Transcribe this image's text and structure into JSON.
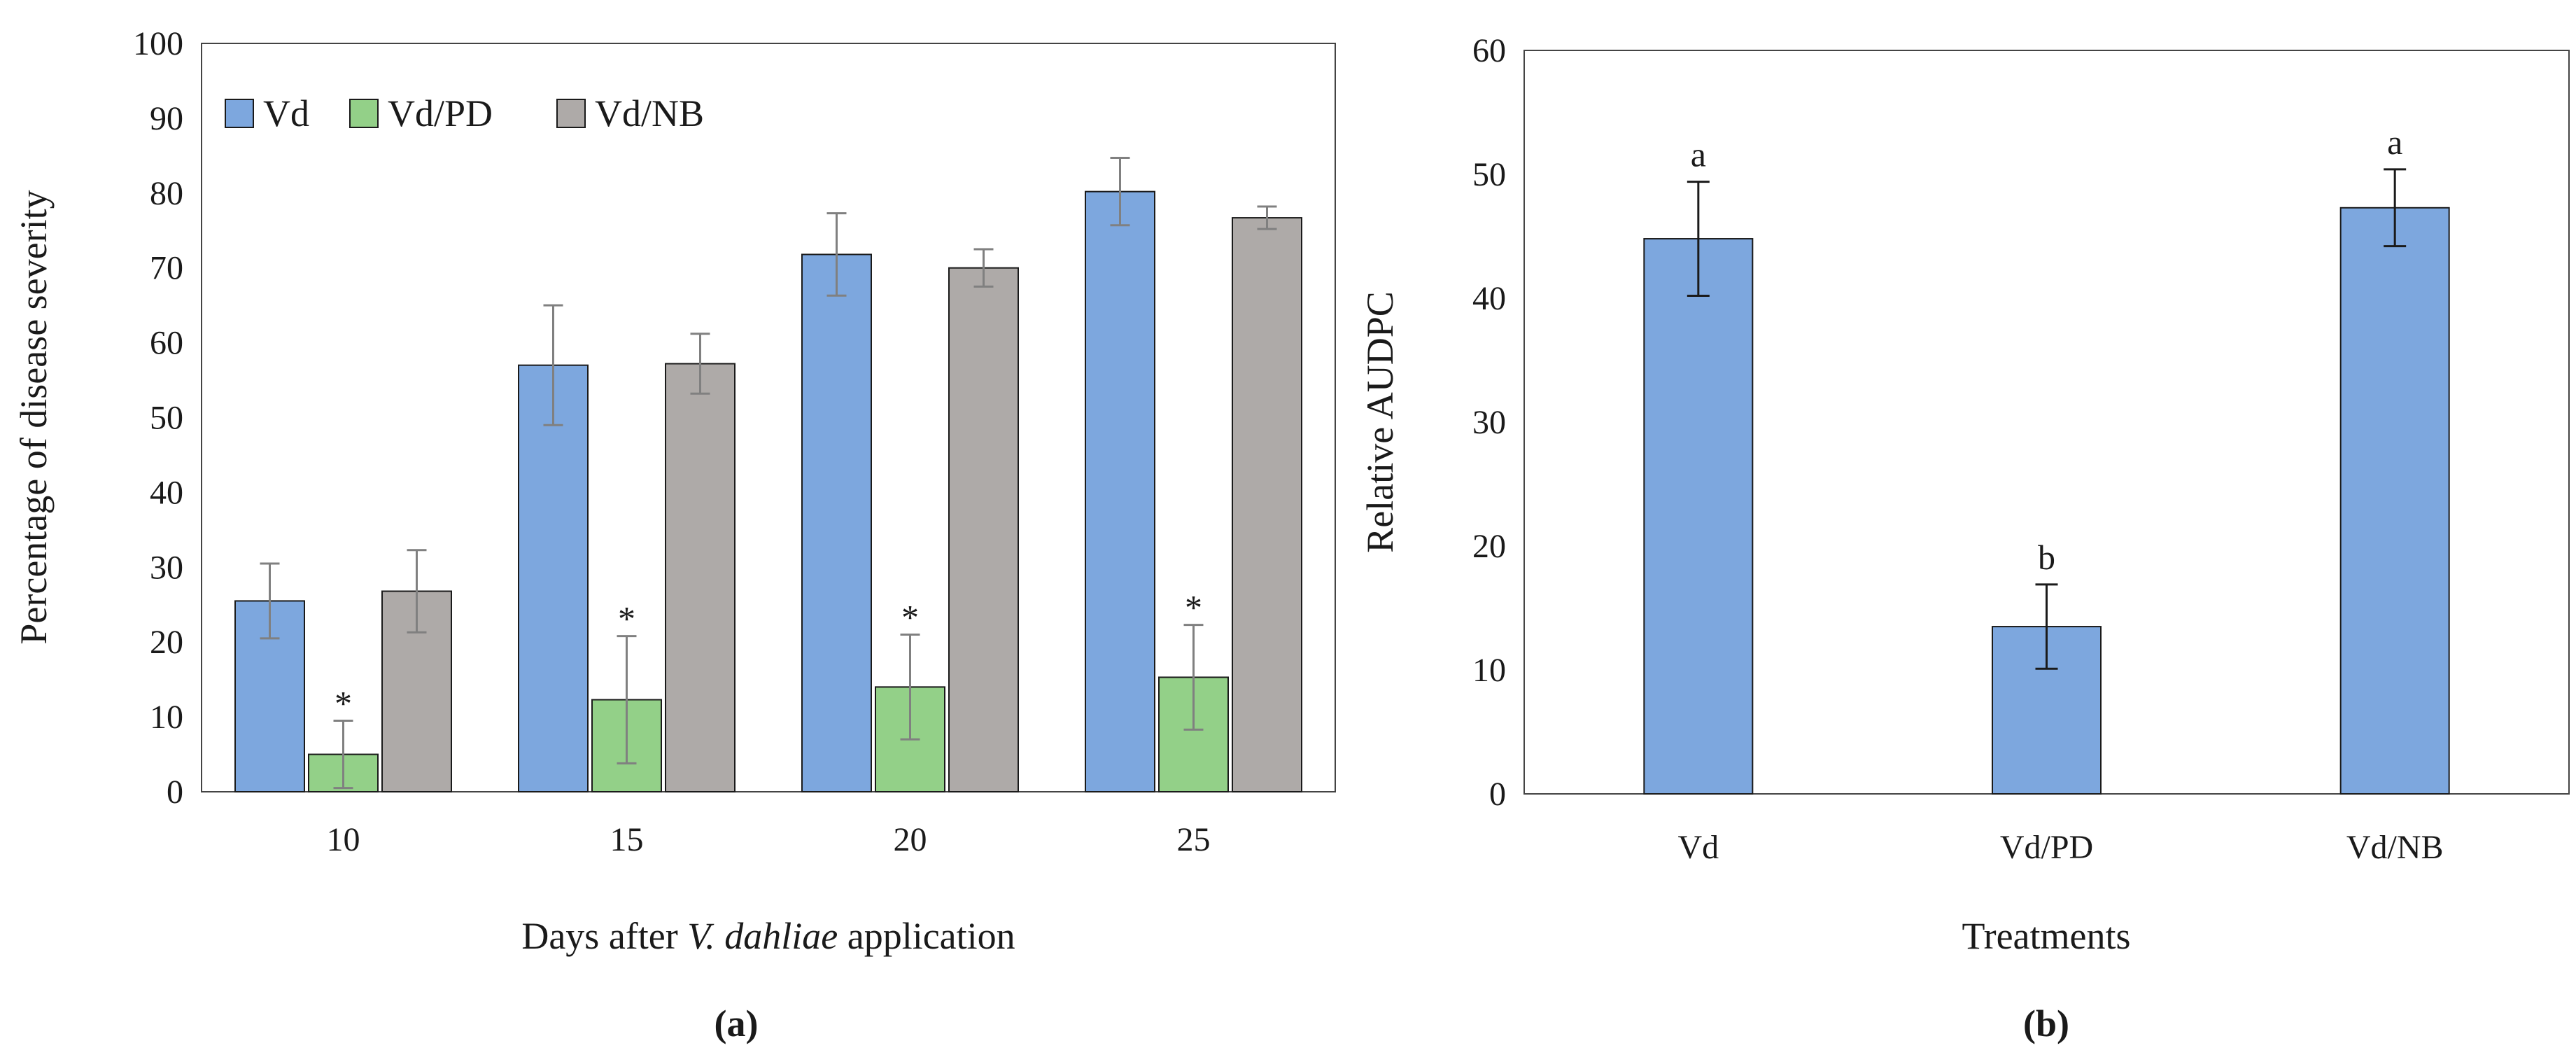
{
  "colors": {
    "Vd": "#7da7de",
    "Vd/PD": "#93d088",
    "Vd/NB": "#aeaaa8",
    "axis": "#1a1a1a",
    "frame": "#444444",
    "error_bar_left": "#808080",
    "error_bar_right": "#1a1a1a"
  },
  "chart_data": [
    {
      "id": "a",
      "type": "bar",
      "panel_label": "(a)",
      "title": "",
      "xlabel_prefix": "Days after ",
      "xlabel_italic": "V. dahliae",
      "xlabel_suffix": " application",
      "ylabel": "Percentage of disease severity",
      "ylim": [
        0,
        100
      ],
      "yticks": [
        0,
        10,
        20,
        30,
        40,
        50,
        60,
        70,
        80,
        90,
        100
      ],
      "categories": [
        "10",
        "15",
        "20",
        "25"
      ],
      "legend_position": "top-left",
      "grid": false,
      "series": [
        {
          "name": "Vd",
          "values": [
            25.5,
            57,
            71.8,
            80.2
          ],
          "errors": [
            5,
            8,
            5.5,
            4.5
          ]
        },
        {
          "name": "Vd/PD",
          "values": [
            5,
            12.3,
            14,
            15.3
          ],
          "errors": [
            4.5,
            8.5,
            7,
            7
          ],
          "annotation": "*"
        },
        {
          "name": "Vd/NB",
          "values": [
            26.8,
            57.2,
            70,
            76.7
          ],
          "errors": [
            5.5,
            4,
            2.5,
            1.5
          ]
        }
      ]
    },
    {
      "id": "b",
      "type": "bar",
      "panel_label": "(b)",
      "title": "",
      "xlabel": "Treatments",
      "ylabel": "Relative AUDPC",
      "ylim": [
        0,
        60
      ],
      "yticks": [
        0,
        10,
        20,
        30,
        40,
        50,
        60
      ],
      "categories": [
        "Vd",
        "Vd/PD",
        "Vd/NB"
      ],
      "grid": false,
      "values": [
        44.8,
        13.5,
        47.3
      ],
      "errors": [
        4.6,
        3.4,
        3.1
      ],
      "letters": [
        "a",
        "b",
        "a"
      ]
    }
  ]
}
